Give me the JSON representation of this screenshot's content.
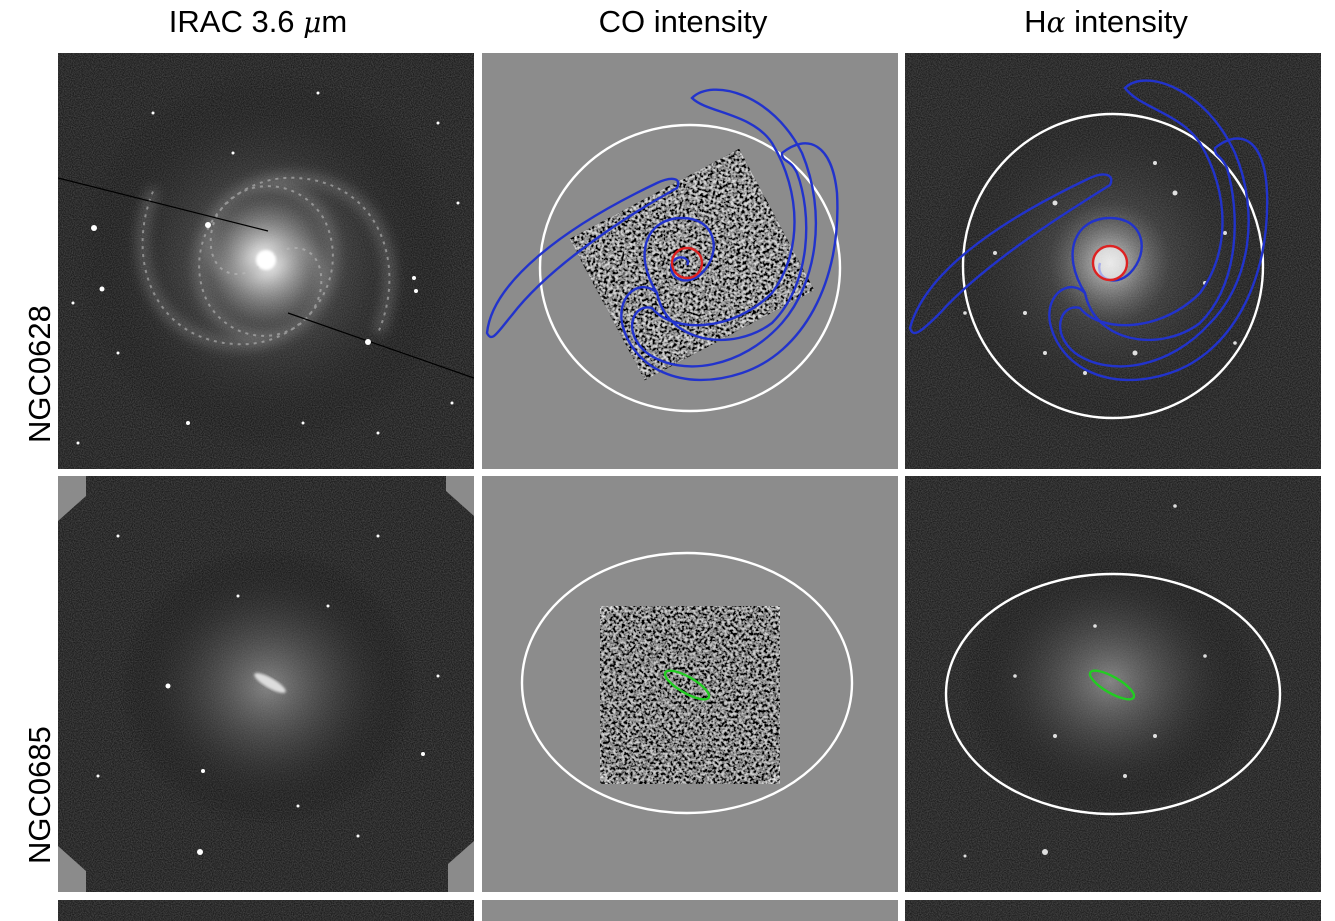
{
  "columns": [
    {
      "prefix": "IRAC 3.6 ",
      "math": "μ",
      "suffix": "m"
    },
    {
      "prefix": "CO intensity",
      "math": "",
      "suffix": ""
    },
    {
      "prefix": "H",
      "math": "α",
      "suffix": " intensity"
    }
  ],
  "rows": [
    {
      "label": "NGC0628"
    },
    {
      "label": "NGC0685"
    }
  ],
  "colors": {
    "background_gray": "#8c8c8c",
    "spiral_contour": "#2233cc",
    "center_ring": "#dd2222",
    "bar_ellipse": "#22cc22",
    "disk_ellipse": "#ffffff"
  }
}
